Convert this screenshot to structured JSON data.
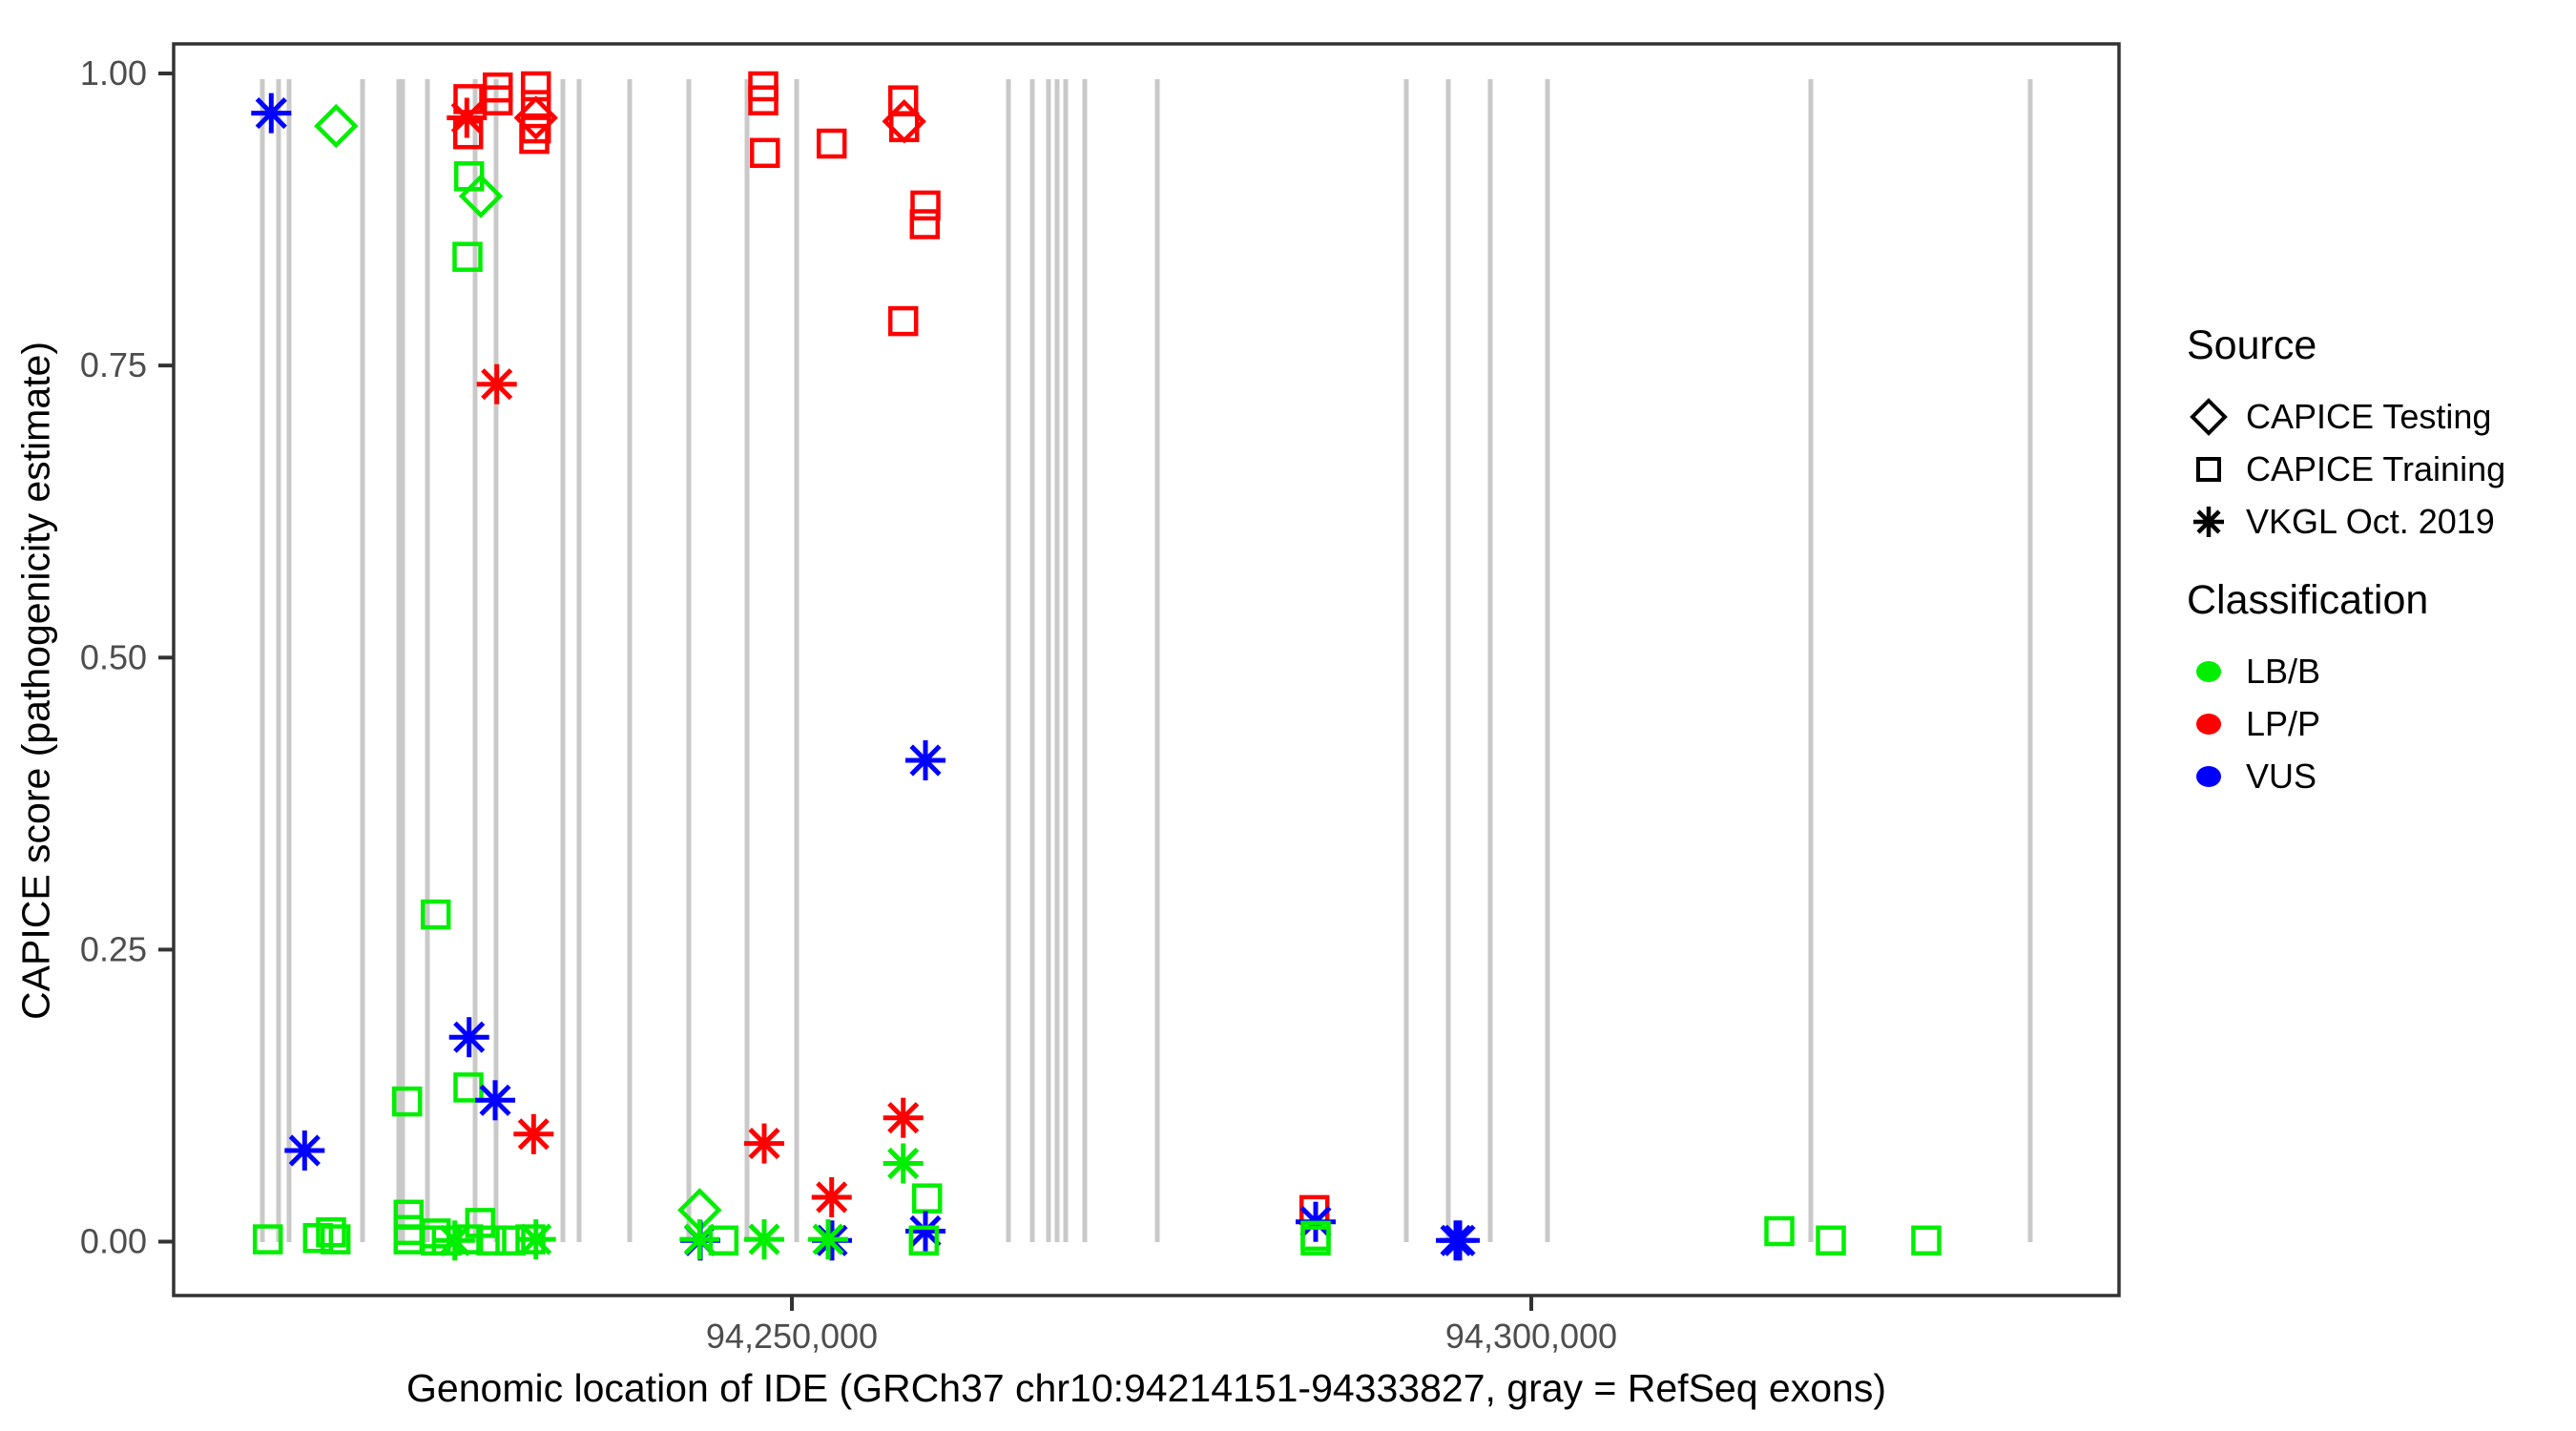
{
  "figure": {
    "y_axis_title": "CAPICE score (pathogenicity estimate)",
    "x_axis_title": "Genomic location of IDE (GRCh37 chr10:94214151-94333827, gray = RefSeq exons)"
  },
  "legend": {
    "source": {
      "title": "Source",
      "items": [
        {
          "label": "CAPICE Testing",
          "shape": "diamond"
        },
        {
          "label": "CAPICE Training",
          "shape": "square"
        },
        {
          "label": "VKGL Oct. 2019",
          "shape": "asterisk"
        }
      ]
    },
    "classification": {
      "title": "Classification",
      "items": [
        {
          "label": "LB/B",
          "color": "#00ee00"
        },
        {
          "label": "LP/P",
          "color": "#ff0000"
        },
        {
          "label": "VUS",
          "color": "#0000ff"
        }
      ]
    }
  },
  "chart_data": {
    "type": "scatter",
    "title": "",
    "xlabel": "Genomic location of IDE (GRCh37 chr10:94214151-94333827, gray = RefSeq exons)",
    "ylabel": "CAPICE score (pathogenicity estimate)",
    "x_domain": [
      94208194,
      94339806
    ],
    "ylim": [
      0,
      1
    ],
    "grid": false,
    "legend_position": "right",
    "x_ticks": [
      {
        "label": "94,250,000",
        "g": 94250000
      },
      {
        "label": "94,300,000",
        "g": 94300000
      }
    ],
    "y_ticks": [
      {
        "label": "0.00",
        "s": 0
      },
      {
        "label": "0.25",
        "s": 0.25
      },
      {
        "label": "0.50",
        "s": 0.5
      },
      {
        "label": "0.75",
        "s": 0.75
      },
      {
        "label": "1.00",
        "s": 1
      }
    ],
    "class_colors": {
      "LB/B": "#00ee00",
      "LP/P": "#ff0000",
      "VUS": "#0000ff"
    },
    "source_shapes": {
      "testing": "diamond",
      "training": "square",
      "vkgl": "asterisk"
    },
    "exon_color": "#c9c9c9",
    "tick_text_color": "#4d4d4d",
    "border_color": "#333333",
    "exons": [
      {
        "g": 94214194,
        "w": 5
      },
      {
        "g": 94215290,
        "w": 5
      },
      {
        "g": 94216000,
        "w": 5
      },
      {
        "g": 94220968,
        "w": 5
      },
      {
        "g": 94223548,
        "w": 9
      },
      {
        "g": 94225355,
        "w": 5
      },
      {
        "g": 94228581,
        "w": 5
      },
      {
        "g": 94230000,
        "w": 5
      },
      {
        "g": 94234516,
        "w": 5
      },
      {
        "g": 94235613,
        "w": 5
      },
      {
        "g": 94239032,
        "w": 5
      },
      {
        "g": 94243032,
        "w": 5
      },
      {
        "g": 94246968,
        "w": 5
      },
      {
        "g": 94250323,
        "w": 5
      },
      {
        "g": 94264645,
        "w": 5
      },
      {
        "g": 94266258,
        "w": 5
      },
      {
        "g": 94267355,
        "w": 5
      },
      {
        "g": 94267935,
        "w": 5
      },
      {
        "g": 94268516,
        "w": 5
      },
      {
        "g": 94269806,
        "w": 5
      },
      {
        "g": 94274710,
        "w": 5
      },
      {
        "g": 94291548,
        "w": 5
      },
      {
        "g": 94294387,
        "w": 5
      },
      {
        "g": 94297226,
        "w": 5
      },
      {
        "g": 94301097,
        "w": 5
      },
      {
        "g": 94318903,
        "w": 5
      },
      {
        "g": 94333742,
        "w": 5
      }
    ],
    "points": [
      {
        "g": 94214795,
        "s": 0.966,
        "src": "vkgl",
        "cls": "VUS"
      },
      {
        "g": 94219182,
        "s": 0.955,
        "src": "testing",
        "cls": "LB/B"
      },
      {
        "g": 94228129,
        "s": 0.978,
        "src": "training",
        "cls": "LP/P"
      },
      {
        "g": 94228019,
        "s": 0.962,
        "src": "vkgl",
        "cls": "LP/P"
      },
      {
        "g": 94228110,
        "s": 0.948,
        "src": "training",
        "cls": "LP/P"
      },
      {
        "g": 94230110,
        "s": 0.988,
        "src": "training",
        "cls": "LP/P"
      },
      {
        "g": 94230110,
        "s": 0.977,
        "src": "training",
        "cls": "LP/P"
      },
      {
        "g": 94232690,
        "s": 0.989,
        "src": "training",
        "cls": "LP/P"
      },
      {
        "g": 94232690,
        "s": 0.973,
        "src": "training",
        "cls": "LP/P"
      },
      {
        "g": 94232690,
        "s": 0.962,
        "src": "testing",
        "cls": "LP/P"
      },
      {
        "g": 94232690,
        "s": 0.953,
        "src": "training",
        "cls": "LP/P"
      },
      {
        "g": 94232581,
        "s": 0.944,
        "src": "training",
        "cls": "LP/P"
      },
      {
        "g": 94228174,
        "s": 0.912,
        "src": "training",
        "cls": "LB/B"
      },
      {
        "g": 94228968,
        "s": 0.895,
        "src": "testing",
        "cls": "LB/B"
      },
      {
        "g": 94228065,
        "s": 0.843,
        "src": "training",
        "cls": "LB/B"
      },
      {
        "g": 94230045,
        "s": 0.734,
        "src": "vkgl",
        "cls": "LP/P"
      },
      {
        "g": 94248065,
        "s": 0.989,
        "src": "training",
        "cls": "LP/P"
      },
      {
        "g": 94248065,
        "s": 0.977,
        "src": "training",
        "cls": "LP/P"
      },
      {
        "g": 94248174,
        "s": 0.932,
        "src": "training",
        "cls": "LP/P"
      },
      {
        "g": 94252690,
        "s": 0.94,
        "src": "training",
        "cls": "LP/P"
      },
      {
        "g": 94257529,
        "s": 0.977,
        "src": "training",
        "cls": "LP/P"
      },
      {
        "g": 94257594,
        "s": 0.959,
        "src": "testing",
        "cls": "LP/P"
      },
      {
        "g": 94257594,
        "s": 0.954,
        "src": "training",
        "cls": "LP/P"
      },
      {
        "g": 94259032,
        "s": 0.887,
        "src": "training",
        "cls": "LP/P"
      },
      {
        "g": 94258987,
        "s": 0.871,
        "src": "training",
        "cls": "LP/P"
      },
      {
        "g": 94257529,
        "s": 0.788,
        "src": "training",
        "cls": "LP/P"
      },
      {
        "g": 94259032,
        "s": 0.412,
        "src": "vkgl",
        "cls": "VUS"
      },
      {
        "g": 94225916,
        "s": 0.28,
        "src": "training",
        "cls": "LB/B"
      },
      {
        "g": 94228174,
        "s": 0.175,
        "src": "vkgl",
        "cls": "VUS"
      },
      {
        "g": 94228129,
        "s": 0.132,
        "src": "training",
        "cls": "LB/B"
      },
      {
        "g": 94229935,
        "s": 0.121,
        "src": "vkgl",
        "cls": "VUS"
      },
      {
        "g": 94223981,
        "s": 0.12,
        "src": "training",
        "cls": "LB/B"
      },
      {
        "g": 94232535,
        "s": 0.092,
        "src": "vkgl",
        "cls": "LP/P"
      },
      {
        "g": 94217052,
        "s": 0.078,
        "src": "vkgl",
        "cls": "VUS"
      },
      {
        "g": 94214561,
        "s": 0.002,
        "src": "training",
        "cls": "LB/B"
      },
      {
        "g": 94217955,
        "s": 0.003,
        "src": "training",
        "cls": "LB/B"
      },
      {
        "g": 94218839,
        "s": 0.008,
        "src": "training",
        "cls": "LB/B"
      },
      {
        "g": 94219142,
        "s": 0.002,
        "src": "training",
        "cls": "LB/B"
      },
      {
        "g": 94224084,
        "s": 0.023,
        "src": "training",
        "cls": "LB/B"
      },
      {
        "g": 94224084,
        "s": 0.01,
        "src": "training",
        "cls": "LB/B"
      },
      {
        "g": 94224084,
        "s": 0.002,
        "src": "training",
        "cls": "LB/B"
      },
      {
        "g": 94225916,
        "s": 0.007,
        "src": "training",
        "cls": "LB/B"
      },
      {
        "g": 94225916,
        "s": 0.001,
        "src": "training",
        "cls": "LB/B"
      },
      {
        "g": 94226665,
        "s": 0.001,
        "src": "training",
        "cls": "LB/B"
      },
      {
        "g": 94228110,
        "s": 0.002,
        "src": "training",
        "cls": "LB/B"
      },
      {
        "g": 94227206,
        "s": 0.001,
        "src": "vkgl",
        "cls": "LB/B"
      },
      {
        "g": 94228923,
        "s": 0.016,
        "src": "training",
        "cls": "LB/B"
      },
      {
        "g": 94229677,
        "s": 0.001,
        "src": "training",
        "cls": "LB/B"
      },
      {
        "g": 94230968,
        "s": 0.001,
        "src": "training",
        "cls": "LB/B"
      },
      {
        "g": 94232323,
        "s": 0.002,
        "src": "training",
        "cls": "LB/B"
      },
      {
        "g": 94232690,
        "s": 0.002,
        "src": "vkgl",
        "cls": "LB/B"
      },
      {
        "g": 94243761,
        "s": 0.027,
        "src": "testing",
        "cls": "LB/B"
      },
      {
        "g": 94243806,
        "s": 0.001,
        "src": "vkgl",
        "cls": "VUS"
      },
      {
        "g": 94243761,
        "s": 0.002,
        "src": "vkgl",
        "cls": "LB/B"
      },
      {
        "g": 94245374,
        "s": 0.001,
        "src": "training",
        "cls": "LB/B"
      },
      {
        "g": 94248129,
        "s": 0.002,
        "src": "vkgl",
        "cls": "LB/B"
      },
      {
        "g": 94248129,
        "s": 0.084,
        "src": "vkgl",
        "cls": "LP/P"
      },
      {
        "g": 94252710,
        "s": 0.001,
        "src": "vkgl",
        "cls": "VUS"
      },
      {
        "g": 94252452,
        "s": 0.002,
        "src": "vkgl",
        "cls": "LB/B"
      },
      {
        "g": 94252690,
        "s": 0.038,
        "src": "vkgl",
        "cls": "LP/P"
      },
      {
        "g": 94257529,
        "s": 0.106,
        "src": "vkgl",
        "cls": "LP/P"
      },
      {
        "g": 94257529,
        "s": 0.067,
        "src": "vkgl",
        "cls": "LB/B"
      },
      {
        "g": 94259142,
        "s": 0.037,
        "src": "training",
        "cls": "LB/B"
      },
      {
        "g": 94259032,
        "s": 0.009,
        "src": "vkgl",
        "cls": "VUS"
      },
      {
        "g": 94258923,
        "s": 0.001,
        "src": "training",
        "cls": "LB/B"
      },
      {
        "g": 94285335,
        "s": 0.027,
        "src": "training",
        "cls": "LP/P"
      },
      {
        "g": 94285419,
        "s": 0.017,
        "src": "vkgl",
        "cls": "VUS"
      },
      {
        "g": 94285419,
        "s": 0.005,
        "src": "training",
        "cls": "LB/B"
      },
      {
        "g": 94285419,
        "s": 0.001,
        "src": "training",
        "cls": "LB/B"
      },
      {
        "g": 94294903,
        "s": 0.001,
        "src": "vkgl",
        "cls": "VUS"
      },
      {
        "g": 94295161,
        "s": 0.001,
        "src": "vkgl",
        "cls": "VUS"
      },
      {
        "g": 94316774,
        "s": 0.009,
        "src": "training",
        "cls": "LB/B"
      },
      {
        "g": 94320258,
        "s": 0.001,
        "src": "training",
        "cls": "LB/B"
      },
      {
        "g": 94326710,
        "s": 0.001,
        "src": "training",
        "cls": "LB/B"
      }
    ]
  }
}
